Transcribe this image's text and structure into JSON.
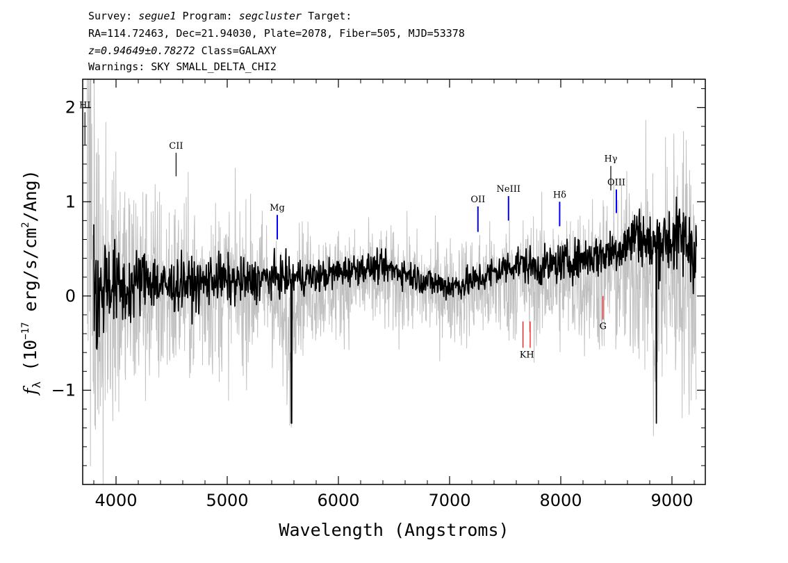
{
  "header": {
    "line1": {
      "survey_label": "Survey:",
      "survey": "segue1",
      "program_label": "Program:",
      "program": "segcluster",
      "target_label": "Target:"
    },
    "line2": "RA=114.72463, Dec=21.94030, Plate=2078, Fiber=505, MJD=53378",
    "line3": {
      "redshift": "z=0.94649±0.78272",
      "class": "Class=GALAXY"
    },
    "line4": "Warnings: SKY SMALL_DELTA_CHI2"
  },
  "chart_data": {
    "type": "line",
    "xlabel": "Wavelength (Angstroms)",
    "ylabel": "f_λ (10^-17 erg/s/cm^2/Ang)",
    "xlim": [
      3700,
      9300
    ],
    "ylim": [
      -2.0,
      2.3
    ],
    "xticks": [
      4000,
      5000,
      6000,
      7000,
      8000,
      9000
    ],
    "yticks": [
      -1,
      0,
      1,
      2
    ],
    "grid": false,
    "colors": {
      "flux": "#000000",
      "error": "#c0c0c0",
      "emission": "#0000ff",
      "absorption": "#ff0000",
      "other": "#000000"
    },
    "series": [
      {
        "role": "flux",
        "style": "thick black line",
        "x": [
          3800,
          3850,
          3900,
          4000,
          4100,
          4200,
          4300,
          4400,
          4500,
          4600,
          4700,
          4800,
          4900,
          5000,
          5200,
          5400,
          5577,
          5600,
          5800,
          6000,
          6200,
          6400,
          6600,
          6800,
          7000,
          7200,
          7400,
          7600,
          7800,
          8000,
          8200,
          8400,
          8600,
          8700,
          8800,
          8860,
          8900,
          9000,
          9100,
          9200
        ],
        "y": [
          0.05,
          -0.1,
          0.2,
          0.1,
          0.05,
          0.15,
          0.2,
          0.1,
          0.1,
          0.15,
          0.1,
          0.15,
          0.2,
          0.15,
          0.15,
          0.2,
          -1.35,
          0.2,
          0.2,
          0.25,
          0.3,
          0.3,
          0.25,
          0.15,
          0.1,
          0.15,
          0.25,
          0.35,
          0.3,
          0.35,
          0.4,
          0.45,
          0.55,
          0.7,
          0.5,
          -1.35,
          0.6,
          0.6,
          0.6,
          0.5
        ]
      },
      {
        "role": "error",
        "style": "grey noise envelope",
        "x": [
          3750,
          3800,
          3900,
          4000,
          4200,
          4400,
          4600,
          5000,
          5400,
          5800,
          6200,
          6600,
          7000,
          7400,
          7800,
          8200,
          8600,
          8800,
          9000,
          9200
        ],
        "y": [
          2.3,
          2.0,
          1.3,
          1.1,
          0.9,
          0.8,
          0.7,
          0.65,
          0.55,
          0.45,
          0.4,
          0.4,
          0.4,
          0.45,
          0.5,
          0.55,
          0.7,
          0.9,
          1.0,
          1.1
        ]
      }
    ],
    "line_markers": [
      {
        "label": "HI",
        "x": 3720,
        "y0": 1.6,
        "y1": 1.95,
        "kind": "other",
        "label_pos": "above"
      },
      {
        "label": "CII",
        "x": 4540,
        "y0": 1.27,
        "y1": 1.52,
        "kind": "other",
        "label_pos": "above"
      },
      {
        "label": "Mg",
        "x": 5450,
        "y0": 0.6,
        "y1": 0.86,
        "kind": "emission",
        "label_pos": "above"
      },
      {
        "label": "OII",
        "x": 7255,
        "y0": 0.68,
        "y1": 0.95,
        "kind": "emission",
        "label_pos": "above"
      },
      {
        "label": "NeIII",
        "x": 7530,
        "y0": 0.8,
        "y1": 1.06,
        "kind": "emission",
        "label_pos": "above"
      },
      {
        "label": "Hδ",
        "x": 7990,
        "y0": 0.74,
        "y1": 1.0,
        "kind": "emission",
        "label_pos": "above"
      },
      {
        "label": "Hγ",
        "x": 8450,
        "y0": 1.12,
        "y1": 1.38,
        "kind": "other",
        "label_pos": "above"
      },
      {
        "label": "OIII",
        "x": 8500,
        "y0": 0.88,
        "y1": 1.13,
        "kind": "emission",
        "label_pos": "above"
      },
      {
        "label": "K",
        "x": 7660,
        "y0": -0.27,
        "y1": -0.55,
        "kind": "absorption",
        "label_pos": "below"
      },
      {
        "label": "H",
        "x": 7725,
        "y0": -0.27,
        "y1": -0.55,
        "kind": "absorption",
        "label_pos": "below"
      },
      {
        "label": "G",
        "x": 8380,
        "y0": -0.25,
        "y1": 0.0,
        "kind": "absorption",
        "label_pos": "below"
      }
    ]
  }
}
